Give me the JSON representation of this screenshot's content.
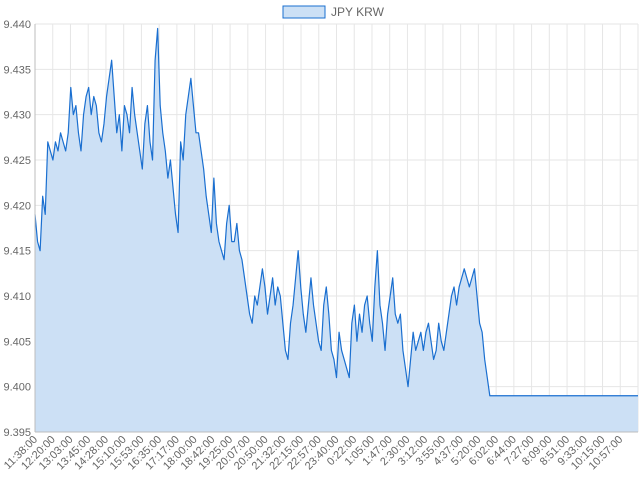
{
  "chart_data": {
    "type": "area",
    "series": [
      {
        "name": "JPY KRW",
        "color": "#1a6fd0",
        "fill": "#cce0f5",
        "values": [
          9.419,
          9.416,
          9.415,
          9.421,
          9.419,
          9.427,
          9.426,
          9.425,
          9.427,
          9.426,
          9.428,
          9.427,
          9.426,
          9.428,
          9.433,
          9.43,
          9.431,
          9.428,
          9.426,
          9.43,
          9.432,
          9.433,
          9.43,
          9.432,
          9.431,
          9.428,
          9.427,
          9.429,
          9.432,
          9.434,
          9.436,
          9.432,
          9.428,
          9.43,
          9.426,
          9.431,
          9.43,
          9.428,
          9.433,
          9.43,
          9.428,
          9.426,
          9.424,
          9.429,
          9.431,
          9.427,
          9.425,
          9.436,
          9.4395,
          9.431,
          9.428,
          9.426,
          9.423,
          9.425,
          9.422,
          9.419,
          9.417,
          9.427,
          9.425,
          9.43,
          9.432,
          9.434,
          9.431,
          9.428,
          9.428,
          9.426,
          9.424,
          9.421,
          9.419,
          9.417,
          9.423,
          9.418,
          9.416,
          9.415,
          9.414,
          9.418,
          9.42,
          9.416,
          9.416,
          9.418,
          9.415,
          9.414,
          9.412,
          9.41,
          9.408,
          9.407,
          9.41,
          9.409,
          9.411,
          9.413,
          9.411,
          9.408,
          9.41,
          9.412,
          9.409,
          9.411,
          9.41,
          9.407,
          9.404,
          9.403,
          9.407,
          9.409,
          9.412,
          9.415,
          9.411,
          9.408,
          9.406,
          9.409,
          9.412,
          9.409,
          9.407,
          9.405,
          9.404,
          9.409,
          9.411,
          9.408,
          9.404,
          9.403,
          9.401,
          9.406,
          9.404,
          9.403,
          9.402,
          9.401,
          9.407,
          9.409,
          9.405,
          9.408,
          9.406,
          9.409,
          9.41,
          9.407,
          9.405,
          9.411,
          9.415,
          9.409,
          9.407,
          9.404,
          9.408,
          9.41,
          9.412,
          9.408,
          9.407,
          9.408,
          9.404,
          9.402,
          9.4,
          9.403,
          9.406,
          9.404,
          9.405,
          9.406,
          9.404,
          9.406,
          9.407,
          9.405,
          9.403,
          9.404,
          9.407,
          9.405,
          9.404,
          9.406,
          9.408,
          9.41,
          9.411,
          9.409,
          9.411,
          9.412,
          9.413,
          9.412,
          9.411,
          9.412,
          9.413,
          9.41,
          9.407,
          9.406,
          9.403,
          9.401,
          9.399,
          9.399,
          9.399,
          9.399,
          9.399,
          9.399,
          9.399,
          9.399,
          9.399,
          9.399,
          9.399,
          9.399,
          9.399,
          9.399,
          9.399,
          9.399,
          9.399,
          9.399,
          9.399,
          9.399,
          9.399,
          9.399,
          9.399,
          9.399,
          9.399,
          9.399,
          9.399,
          9.399,
          9.399,
          9.399,
          9.399,
          9.399,
          9.399,
          9.399,
          9.399,
          9.399,
          9.399,
          9.399,
          9.399,
          9.399,
          9.399,
          9.399,
          9.399,
          9.399,
          9.399,
          9.399,
          9.399,
          9.399,
          9.399,
          9.399,
          9.399,
          9.399,
          9.399,
          9.399,
          9.399,
          9.399,
          9.399,
          9.399,
          9.399
        ]
      }
    ],
    "x_tick_labels": [
      "11:38:00",
      "12:20:00",
      "13:03:00",
      "13:45:00",
      "14:28:00",
      "15:10:00",
      "15:53:00",
      "16:35:00",
      "17:17:00",
      "18:00:00",
      "18:42:00",
      "19:25:00",
      "20:07:00",
      "20:50:00",
      "21:32:00",
      "22:15:00",
      "22:57:00",
      "23:40:00",
      "0:22:00",
      "1:05:00",
      "1:47:00",
      "2:30:00",
      "3:12:00",
      "3:55:00",
      "4:37:00",
      "5:20:00",
      "6:02:00",
      "6:44:00",
      "7:27:00",
      "8:09:00",
      "8:51:00",
      "9:33:00",
      "10:15:00",
      "10:57:00"
    ],
    "y_ticks": [
      "9.440",
      "9.435",
      "9.430",
      "9.425",
      "9.420",
      "9.415",
      "9.410",
      "9.405",
      "9.400",
      "9.395"
    ],
    "ylim": [
      9.395,
      9.44
    ],
    "grid": true,
    "legend_position": "top-center"
  }
}
